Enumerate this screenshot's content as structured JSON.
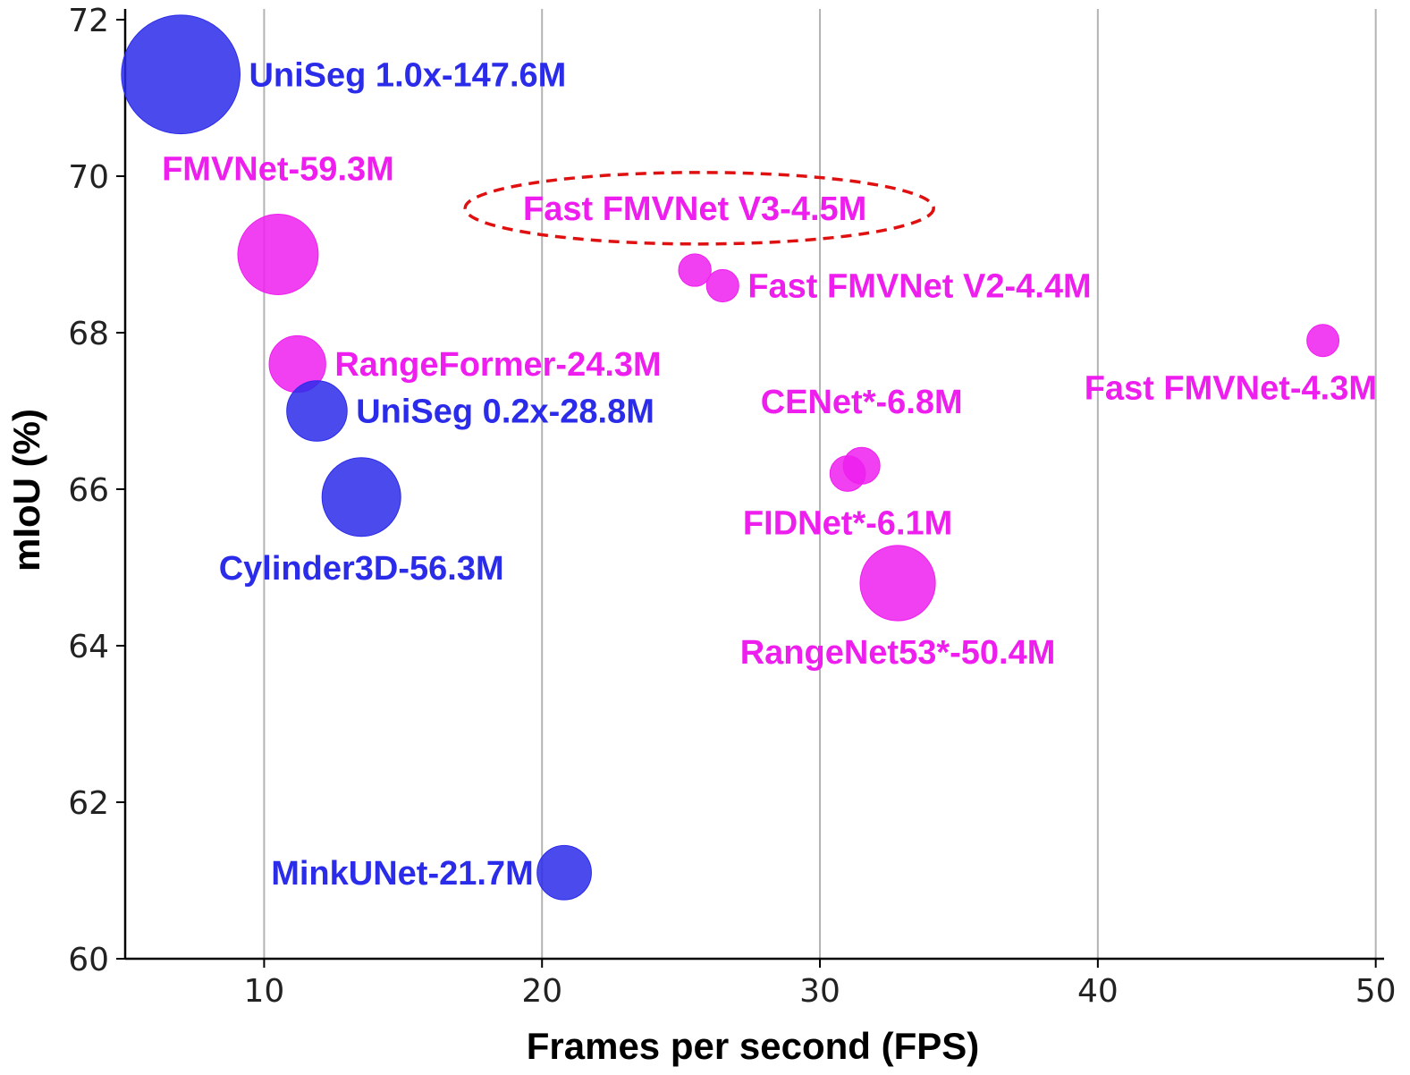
{
  "chart_data": {
    "type": "scatter",
    "xlabel": "Frames per second (FPS)",
    "ylabel": "mIoU (%)",
    "xlim": [
      5,
      50.3
    ],
    "ylim": [
      60,
      72
    ],
    "xticks": [
      10,
      20,
      30,
      40,
      50
    ],
    "yticks": [
      60,
      62,
      64,
      66,
      68,
      70,
      72
    ],
    "grid": "vertical",
    "colors": {
      "blue": "#2b2bea",
      "magenta": "#ee1fee",
      "highlight": "#e01010"
    },
    "points": [
      {
        "label": "UniSeg 1.0x-147.6M",
        "x": 7.0,
        "y": 71.3,
        "params": 147.6,
        "color": "blue",
        "label_pos": "right"
      },
      {
        "label": "FMVNet-59.3M",
        "x": 10.5,
        "y": 69.0,
        "params": 59.3,
        "color": "magenta",
        "label_pos": "above"
      },
      {
        "label": "RangeFormer-24.3M",
        "x": 11.2,
        "y": 67.6,
        "params": 24.3,
        "color": "magenta",
        "label_pos": "right"
      },
      {
        "label": "UniSeg 0.2x-28.8M",
        "x": 11.9,
        "y": 67.0,
        "params": 28.8,
        "color": "blue",
        "label_pos": "right"
      },
      {
        "label": "Cylinder3D-56.3M",
        "x": 13.5,
        "y": 65.9,
        "params": 56.3,
        "color": "blue",
        "label_pos": "below"
      },
      {
        "label": "MinkUNet-21.7M",
        "x": 20.8,
        "y": 61.1,
        "params": 21.7,
        "color": "blue",
        "label_pos": "left"
      },
      {
        "label": "Fast FMVNet V3-4.5M",
        "x": 25.5,
        "y": 68.8,
        "params": 4.5,
        "color": "magenta",
        "label_pos": "above",
        "highlight": true
      },
      {
        "label": "Fast FMVNet V2-4.4M",
        "x": 26.5,
        "y": 68.6,
        "params": 4.4,
        "color": "magenta",
        "label_pos": "right"
      },
      {
        "label": "FIDNet*-6.1M",
        "x": 31.0,
        "y": 66.2,
        "params": 6.1,
        "color": "magenta",
        "label_pos": "below"
      },
      {
        "label": "CENet*-6.8M",
        "x": 31.5,
        "y": 66.3,
        "params": 6.8,
        "color": "magenta",
        "label_pos": "above"
      },
      {
        "label": "RangeNet53*-50.4M",
        "x": 32.8,
        "y": 64.8,
        "params": 50.4,
        "color": "magenta",
        "label_pos": "below"
      },
      {
        "label": "Fast FMVNet-4.3M",
        "x": 48.1,
        "y": 67.9,
        "params": 4.3,
        "color": "magenta",
        "label_pos": "below"
      }
    ]
  }
}
